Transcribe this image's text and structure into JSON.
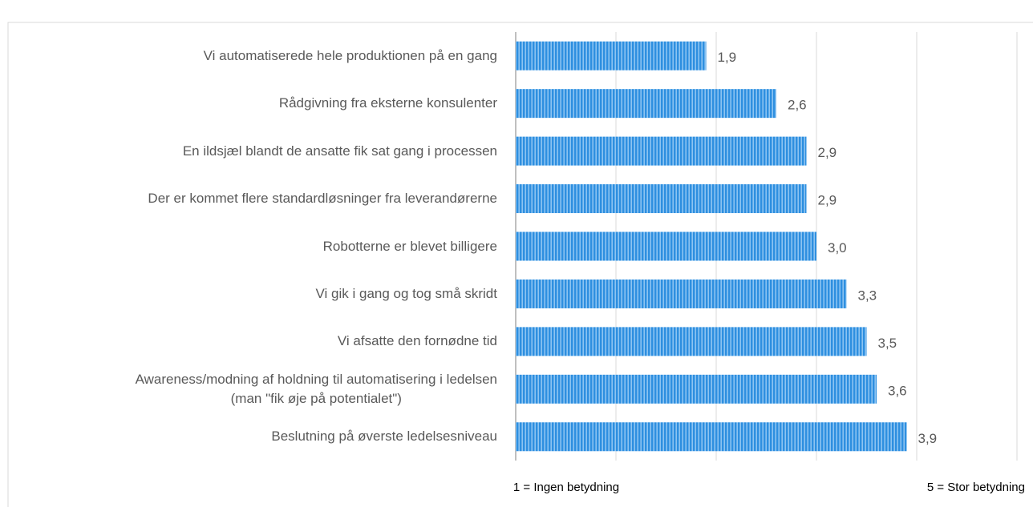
{
  "chart_data": {
    "type": "bar",
    "orientation": "horizontal",
    "categories": [
      "Vi automatiserede hele produktionen på en gang",
      "Rådgivning fra eksterne konsulenter",
      "En ildsjæl blandt de ansatte fik sat gang i processen",
      "Der er kommet flere standardløsninger fra leverandørerne",
      "Robotterne er blevet billigere",
      "Vi gik i gang og tog små skridt",
      "Vi afsatte den fornødne tid",
      "Awareness/modning af holdning til automatisering i ledelsen\n(man \"fik øje på potentialet\")",
      "Beslutning på øverste ledelsesniveau"
    ],
    "values": [
      1.9,
      2.6,
      2.9,
      2.9,
      3.0,
      3.3,
      3.5,
      3.6,
      3.9
    ],
    "value_labels": [
      "1,9",
      "2,6",
      "2,9",
      "2,9",
      "3,0",
      "3,3",
      "3,5",
      "3,6",
      "3,9"
    ],
    "color": "#2e8fe0",
    "xlim": [
      0,
      5
    ],
    "xticks": [
      0,
      1,
      2,
      3,
      4,
      5
    ],
    "grid": true,
    "annotations": {
      "low": "1 = Ingen betydning",
      "high": "5 = Stor betydning"
    }
  }
}
